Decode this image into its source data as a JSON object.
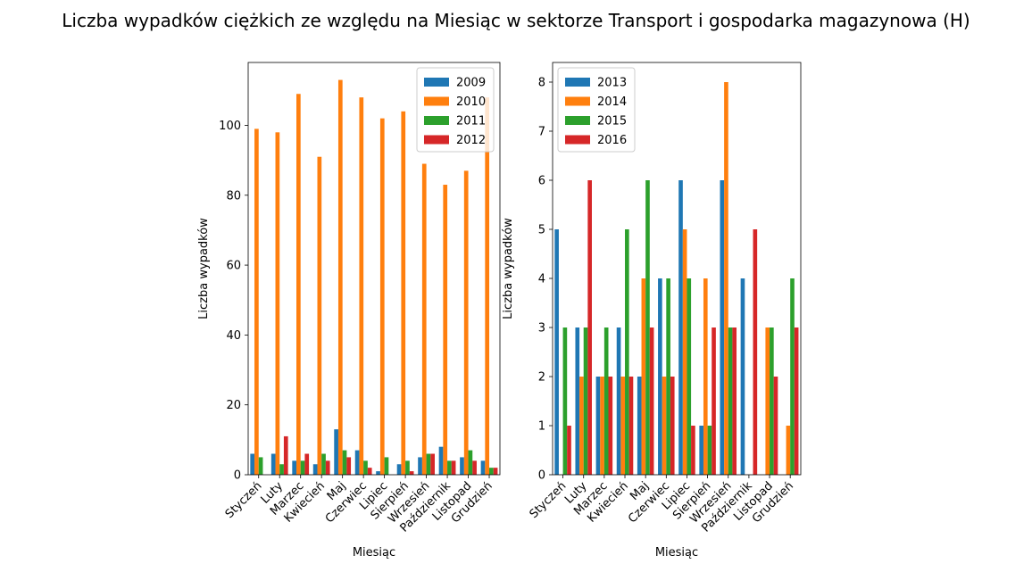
{
  "suptitle": "Liczba wypadków ciężkich ze względu na Miesiąc w sektorze Transport i gospodarka magazynowa (H)",
  "colors": [
    "#1f77b4",
    "#ff7f0e",
    "#2ca02c",
    "#d62728"
  ],
  "chart_data": [
    {
      "type": "bar",
      "xlabel": "Miesiąc",
      "ylabel": "Liczba wypadków",
      "ylim": [
        0,
        118
      ],
      "yticks": [
        0,
        20,
        40,
        60,
        80,
        100
      ],
      "legend_position": "top-right",
      "categories": [
        "Styczeń",
        "Luty",
        "Marzec",
        "Kwiecień",
        "Maj",
        "Czerwiec",
        "Lipiec",
        "Sierpień",
        "Wrzesień",
        "Październik",
        "Listopad",
        "Grudzień"
      ],
      "series": [
        {
          "name": "2009",
          "values": [
            6,
            6,
            4,
            3,
            13,
            7,
            1,
            3,
            5,
            8,
            5,
            4
          ]
        },
        {
          "name": "2010",
          "values": [
            99,
            98,
            109,
            91,
            113,
            108,
            102,
            104,
            89,
            83,
            87,
            108
          ]
        },
        {
          "name": "2011",
          "values": [
            5,
            3,
            4,
            6,
            7,
            4,
            5,
            4,
            6,
            4,
            7,
            2
          ]
        },
        {
          "name": "2012",
          "values": [
            0,
            11,
            6,
            4,
            5,
            2,
            0,
            1,
            6,
            4,
            4,
            2
          ]
        }
      ]
    },
    {
      "type": "bar",
      "xlabel": "Miesiąc",
      "ylabel": "Liczba wypadków",
      "ylim": [
        0,
        8.4
      ],
      "yticks": [
        0,
        1,
        2,
        3,
        4,
        5,
        6,
        7,
        8
      ],
      "legend_position": "top-left",
      "categories": [
        "Styczeń",
        "Luty",
        "Marzec",
        "Kwiecień",
        "Maj",
        "Czerwiec",
        "Lipiec",
        "Sierpień",
        "Wrzesień",
        "Październik",
        "Listopad",
        "Grudzień"
      ],
      "series": [
        {
          "name": "2013",
          "values": [
            5,
            3,
            2,
            3,
            2,
            4,
            6,
            1,
            6,
            4,
            0,
            0
          ]
        },
        {
          "name": "2014",
          "values": [
            0,
            2,
            2,
            2,
            4,
            2,
            5,
            4,
            8,
            0,
            3,
            1
          ]
        },
        {
          "name": "2015",
          "values": [
            3,
            3,
            3,
            5,
            6,
            4,
            4,
            1,
            3,
            0,
            3,
            4
          ]
        },
        {
          "name": "2016",
          "values": [
            1,
            6,
            2,
            2,
            3,
            2,
            1,
            3,
            3,
            5,
            2,
            3
          ]
        }
      ]
    }
  ]
}
